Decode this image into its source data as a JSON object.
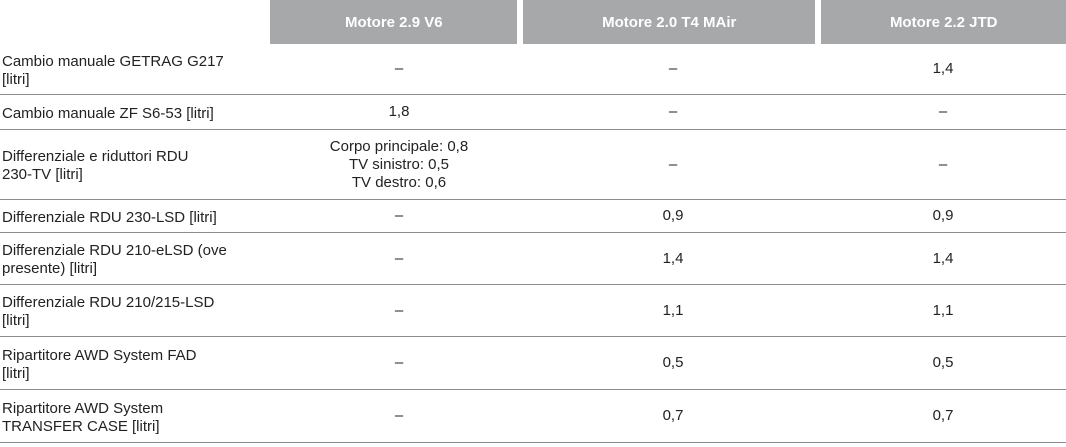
{
  "header": {
    "col1": "Motore 2.9 V6",
    "col2": "Motore 2.0 T4 MAir",
    "col3": "Motore 2.2 JTD"
  },
  "rows": [
    {
      "label_lines": [
        "Cambio manuale GETRAG G217",
        "[litri]"
      ],
      "v1": "–",
      "v2": "–",
      "v3": "1,4"
    },
    {
      "label_lines": [
        "Cambio manuale ZF S6-53 [litri]"
      ],
      "v1": "1,8",
      "v2": "–",
      "v3": "–"
    },
    {
      "label_lines": [
        "Differenziale e riduttori RDU",
        "230-TV [litri]"
      ],
      "v1_lines": [
        "Corpo principale: 0,8",
        "TV sinistro: 0,5",
        "TV destro: 0,6"
      ],
      "v2": "–",
      "v3": "–"
    },
    {
      "label_lines": [
        "Differenziale RDU 230-LSD [litri]"
      ],
      "v1": "–",
      "v2": "0,9",
      "v3": "0,9"
    },
    {
      "label_lines": [
        "Differenziale RDU 210-eLSD (ove",
        "presente) [litri]"
      ],
      "v1": "–",
      "v2": "1,4",
      "v3": "1,4"
    },
    {
      "label_lines": [
        "Differenziale RDU 210/215-LSD",
        "[litri]"
      ],
      "v1": "–",
      "v2": "1,1",
      "v3": "1,1"
    },
    {
      "label_lines": [
        "Ripartitore AWD System FAD",
        "[litri]"
      ],
      "v1": "–",
      "v2": "0,5",
      "v3": "0,5"
    },
    {
      "label_lines": [
        "Ripartitore AWD System",
        "TRANSFER CASE [litri]"
      ],
      "v1": "–",
      "v2": "0,7",
      "v3": "0,7"
    }
  ]
}
